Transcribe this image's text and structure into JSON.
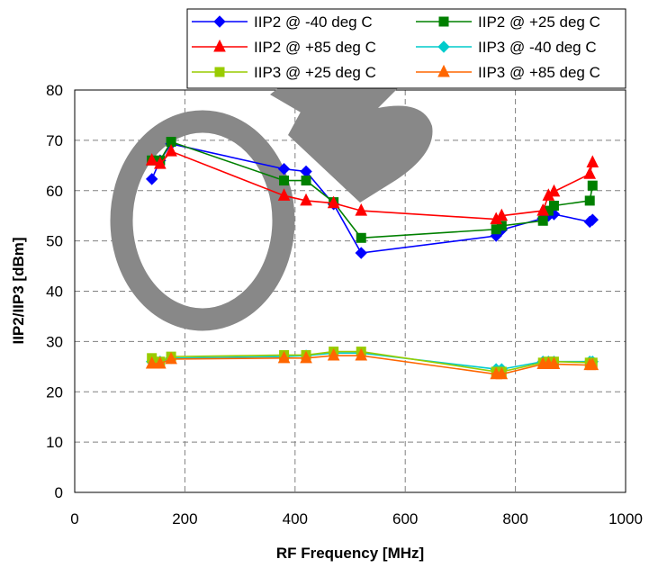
{
  "chart_data": {
    "type": "line",
    "title": "",
    "xlabel": "RF Frequency [MHz]",
    "ylabel": "IIP2/IIP3  [dBm]",
    "xlim": [
      0,
      1000
    ],
    "ylim": [
      0,
      80
    ],
    "xticks": [
      "0",
      "200",
      "400",
      "600",
      "800",
      "1000"
    ],
    "yticks": [
      "0",
      "10",
      "20",
      "30",
      "40",
      "50",
      "60",
      "70",
      "80"
    ],
    "grid": true,
    "legend_position": "top-right",
    "x": [
      140,
      155,
      175,
      380,
      420,
      470,
      520,
      765,
      775,
      850,
      860,
      870,
      935,
      940
    ],
    "series": [
      {
        "name": "IIP2 @ -40 deg C",
        "color": "#0000ff",
        "marker": "diamond",
        "values": [
          62.3,
          66.0,
          69.3,
          64.3,
          63.8,
          57.3,
          47.6,
          51.0,
          52.2,
          54.5,
          55.0,
          55.3,
          53.8,
          54.2
        ]
      },
      {
        "name": "IIP2 @ +25 deg C",
        "color": "#008000",
        "marker": "square",
        "values": [
          66.0,
          66.0,
          69.7,
          62.0,
          62.0,
          57.7,
          50.6,
          52.3,
          53.0,
          54.0,
          56.0,
          57.0,
          58.0,
          61.0
        ]
      },
      {
        "name": "IIP2 @ +85 deg C",
        "color": "#ff0000",
        "marker": "triangle",
        "values": [
          66.0,
          65.3,
          67.8,
          59.0,
          58.0,
          57.5,
          56.0,
          54.3,
          55.0,
          56.0,
          59.0,
          59.8,
          63.3,
          65.6
        ]
      },
      {
        "name": "IIP3 @ -40 deg C",
        "color": "#00cccc",
        "marker": "diamond",
        "values": [
          26.0,
          26.0,
          26.7,
          27.0,
          27.2,
          27.7,
          27.7,
          24.5,
          24.5,
          26.0,
          26.0,
          26.0,
          26.0,
          26.0
        ]
      },
      {
        "name": "IIP3 @ +25 deg C",
        "color": "#99cc00",
        "marker": "square",
        "values": [
          26.7,
          26.0,
          27.0,
          27.3,
          27.3,
          28.0,
          28.0,
          24.0,
          24.0,
          25.8,
          26.0,
          26.0,
          25.8,
          25.8
        ]
      },
      {
        "name": "IIP3 @ +85 deg C",
        "color": "#ff6600",
        "marker": "triangle",
        "values": [
          25.6,
          25.6,
          26.5,
          26.7,
          26.7,
          27.2,
          27.2,
          23.5,
          23.5,
          25.5,
          25.5,
          25.5,
          25.3,
          25.3
        ]
      }
    ]
  }
}
